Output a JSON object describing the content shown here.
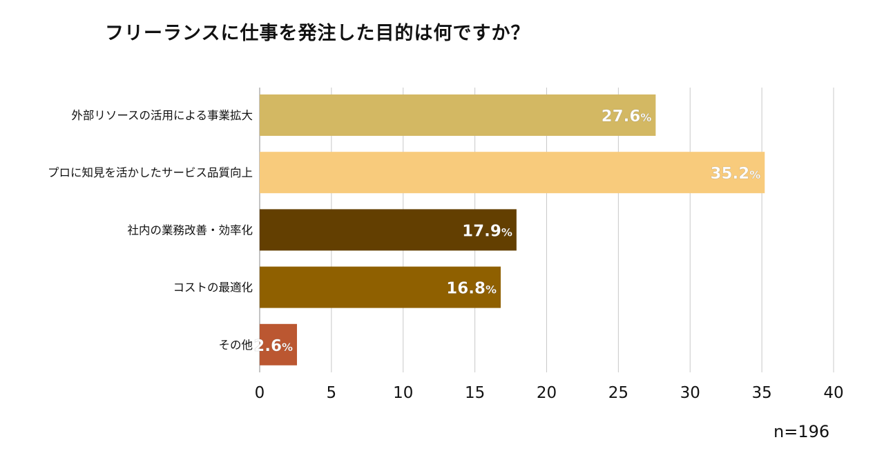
{
  "chart_data": {
    "type": "bar",
    "orientation": "horizontal",
    "title": "フリーランスに仕事を発注した目的は何ですか？",
    "categories": [
      "外部リソースの活用による事業拡大",
      "プロに知見を活かしたサービス品質向上",
      "社内の業務改善・効率化",
      "コストの最適化",
      "その他"
    ],
    "values": [
      27.6,
      35.2,
      17.9,
      16.8,
      2.6
    ],
    "value_labels": [
      "27.6",
      "35.2",
      "17.9",
      "16.8",
      "2.6"
    ],
    "value_suffix": "%",
    "colors": [
      "#d3b863",
      "#f8cb7c",
      "#633f01",
      "#8f6000",
      "#bb5731"
    ],
    "label_text_color": "#ffffff",
    "xlim": [
      0,
      40
    ],
    "xticks": [
      0,
      5,
      10,
      15,
      20,
      25,
      30,
      35,
      40
    ],
    "grid": true,
    "grid_color": "#c8c8c8",
    "xlabel": "",
    "ylabel": "",
    "sample_size": "n=196"
  }
}
